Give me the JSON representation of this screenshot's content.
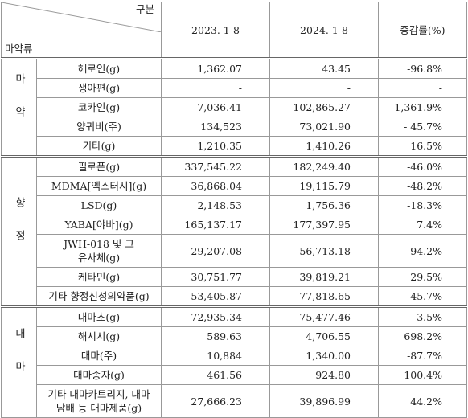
{
  "header": {
    "corner_top": "구분",
    "corner_bottom": "마약류",
    "columns": [
      "2023. 1-8",
      "2024. 1-8",
      "증감률(%)"
    ]
  },
  "groups": [
    {
      "label": "마약",
      "rows": [
        [
          "헤로인(g)",
          "1,362.07",
          "43.45",
          "-96.8%"
        ],
        [
          "생아편(g)",
          "-",
          "-",
          "-"
        ],
        [
          "코카인(g)",
          "7,036.41",
          "102,865.27",
          "1,361.9%"
        ],
        [
          "양귀비(주)",
          "134,523",
          "73,021.90",
          "- 45.7%"
        ],
        [
          "기타(g)",
          "1,210.35",
          "1,410.26",
          "16.5%"
        ]
      ]
    },
    {
      "label": "향정",
      "rows": [
        [
          "필로폰(g)",
          "337,545.22",
          "182,249.40",
          "-46.0%"
        ],
        [
          "MDMA[엑스터시](g)",
          "36,868.04",
          "19,115.79",
          "-48.2%"
        ],
        [
          "LSD(g)",
          "2,148.53",
          "1,756.36",
          "-18.3%"
        ],
        [
          "YABA[야바](g)",
          "165,137.17",
          "177,397.95",
          "7.4%"
        ],
        [
          "JWH-018 및 그\n유사체(g)",
          "29,207.08",
          "56,713.18",
          "94.2%"
        ],
        [
          "케타민(g)",
          "30,751.77",
          "39,819.21",
          "29.5%"
        ],
        [
          "기타 향정신성의약품(g)",
          "53,405.87",
          "77,818.65",
          "45.7%"
        ]
      ]
    },
    {
      "label": "대마",
      "rows": [
        [
          "대마초(g)",
          "72,935.34",
          "75,477.46",
          "3.5%"
        ],
        [
          "해시시(g)",
          "589.63",
          "4,706.55",
          "698.2%"
        ],
        [
          "대마(주)",
          "10,884",
          "1,340.00",
          "-87.7%"
        ],
        [
          "대마종자(g)",
          "461.56",
          "924.80",
          "100.4%"
        ],
        [
          "기타 대마카트리지, 대마\n담배 등 대마제품(g)",
          "27,666.23",
          "39,896.99",
          "44.2%"
        ]
      ]
    }
  ]
}
